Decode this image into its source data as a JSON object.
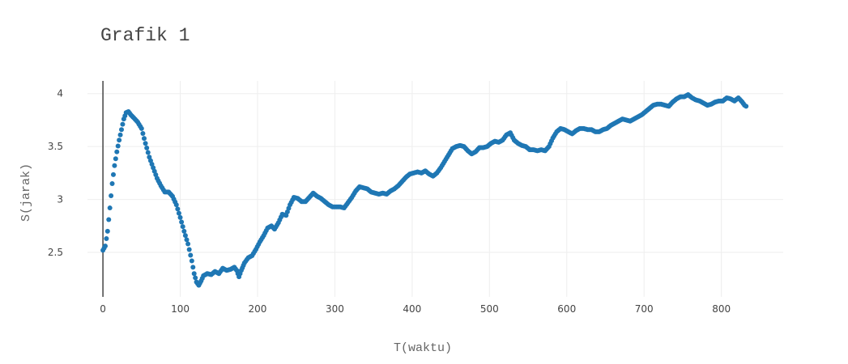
{
  "chart_data": {
    "type": "scatter",
    "title": "Grafik 1",
    "xlabel": "T(waktu)",
    "ylabel": "S(jarak)",
    "xlim": [
      -20,
      880
    ],
    "ylim": [
      2.08,
      4.12
    ],
    "x_ticks": [
      0,
      100,
      200,
      300,
      400,
      500,
      600,
      700,
      800
    ],
    "x_tick_labels": [
      "0",
      "100",
      "200",
      "300",
      "400",
      "500",
      "600",
      "700",
      "800"
    ],
    "y_ticks": [
      2.5,
      3,
      3.5,
      4
    ],
    "y_tick_labels": [
      "2.5",
      "3",
      "3.5",
      "4"
    ],
    "grid": true,
    "legend": "none",
    "color": "#1f77b4",
    "series": [
      {
        "name": "S(jarak)",
        "keypoints": [
          [
            0,
            2.52
          ],
          [
            3,
            2.56
          ],
          [
            6,
            2.7
          ],
          [
            9,
            2.92
          ],
          [
            12,
            3.15
          ],
          [
            15,
            3.32
          ],
          [
            18,
            3.45
          ],
          [
            21,
            3.56
          ],
          [
            24,
            3.66
          ],
          [
            27,
            3.76
          ],
          [
            30,
            3.82
          ],
          [
            33,
            3.83
          ],
          [
            36,
            3.8
          ],
          [
            40,
            3.77
          ],
          [
            45,
            3.73
          ],
          [
            50,
            3.67
          ],
          [
            55,
            3.53
          ],
          [
            60,
            3.4
          ],
          [
            65,
            3.3
          ],
          [
            70,
            3.2
          ],
          [
            75,
            3.13
          ],
          [
            80,
            3.07
          ],
          [
            85,
            3.07
          ],
          [
            90,
            3.03
          ],
          [
            95,
            2.95
          ],
          [
            100,
            2.83
          ],
          [
            105,
            2.7
          ],
          [
            110,
            2.58
          ],
          [
            115,
            2.42
          ],
          [
            118,
            2.3
          ],
          [
            121,
            2.22
          ],
          [
            124,
            2.19
          ],
          [
            127,
            2.23
          ],
          [
            130,
            2.28
          ],
          [
            135,
            2.3
          ],
          [
            140,
            2.29
          ],
          [
            145,
            2.32
          ],
          [
            150,
            2.3
          ],
          [
            155,
            2.35
          ],
          [
            160,
            2.33
          ],
          [
            165,
            2.34
          ],
          [
            170,
            2.36
          ],
          [
            173,
            2.33
          ],
          [
            176,
            2.27
          ],
          [
            179,
            2.33
          ],
          [
            183,
            2.4
          ],
          [
            188,
            2.45
          ],
          [
            193,
            2.47
          ],
          [
            198,
            2.53
          ],
          [
            203,
            2.6
          ],
          [
            208,
            2.66
          ],
          [
            213,
            2.73
          ],
          [
            218,
            2.75
          ],
          [
            222,
            2.72
          ],
          [
            227,
            2.78
          ],
          [
            232,
            2.86
          ],
          [
            237,
            2.85
          ],
          [
            242,
            2.95
          ],
          [
            247,
            3.02
          ],
          [
            252,
            3.01
          ],
          [
            257,
            2.98
          ],
          [
            262,
            2.98
          ],
          [
            267,
            3.02
          ],
          [
            272,
            3.06
          ],
          [
            277,
            3.03
          ],
          [
            282,
            3.01
          ],
          [
            287,
            2.98
          ],
          [
            292,
            2.95
          ],
          [
            297,
            2.93
          ],
          [
            302,
            2.93
          ],
          [
            307,
            2.93
          ],
          [
            312,
            2.92
          ],
          [
            317,
            2.97
          ],
          [
            322,
            3.02
          ],
          [
            327,
            3.08
          ],
          [
            332,
            3.12
          ],
          [
            337,
            3.11
          ],
          [
            342,
            3.1
          ],
          [
            347,
            3.07
          ],
          [
            352,
            3.06
          ],
          [
            357,
            3.05
          ],
          [
            362,
            3.06
          ],
          [
            367,
            3.05
          ],
          [
            372,
            3.08
          ],
          [
            377,
            3.1
          ],
          [
            382,
            3.13
          ],
          [
            387,
            3.17
          ],
          [
            392,
            3.21
          ],
          [
            397,
            3.24
          ],
          [
            402,
            3.25
          ],
          [
            407,
            3.26
          ],
          [
            412,
            3.25
          ],
          [
            417,
            3.27
          ],
          [
            422,
            3.24
          ],
          [
            427,
            3.22
          ],
          [
            432,
            3.25
          ],
          [
            437,
            3.3
          ],
          [
            442,
            3.36
          ],
          [
            447,
            3.42
          ],
          [
            452,
            3.48
          ],
          [
            457,
            3.5
          ],
          [
            462,
            3.51
          ],
          [
            467,
            3.5
          ],
          [
            472,
            3.46
          ],
          [
            477,
            3.43
          ],
          [
            482,
            3.45
          ],
          [
            487,
            3.49
          ],
          [
            492,
            3.49
          ],
          [
            497,
            3.5
          ],
          [
            502,
            3.53
          ],
          [
            507,
            3.55
          ],
          [
            512,
            3.54
          ],
          [
            517,
            3.56
          ],
          [
            522,
            3.61
          ],
          [
            527,
            3.63
          ],
          [
            532,
            3.56
          ],
          [
            537,
            3.53
          ],
          [
            542,
            3.51
          ],
          [
            547,
            3.5
          ],
          [
            552,
            3.47
          ],
          [
            557,
            3.47
          ],
          [
            562,
            3.46
          ],
          [
            567,
            3.47
          ],
          [
            572,
            3.46
          ],
          [
            577,
            3.5
          ],
          [
            582,
            3.58
          ],
          [
            587,
            3.64
          ],
          [
            592,
            3.67
          ],
          [
            597,
            3.66
          ],
          [
            602,
            3.64
          ],
          [
            607,
            3.62
          ],
          [
            612,
            3.65
          ],
          [
            617,
            3.67
          ],
          [
            622,
            3.67
          ],
          [
            627,
            3.66
          ],
          [
            632,
            3.66
          ],
          [
            637,
            3.64
          ],
          [
            642,
            3.64
          ],
          [
            647,
            3.66
          ],
          [
            652,
            3.67
          ],
          [
            657,
            3.7
          ],
          [
            662,
            3.72
          ],
          [
            667,
            3.74
          ],
          [
            672,
            3.76
          ],
          [
            677,
            3.75
          ],
          [
            682,
            3.74
          ],
          [
            687,
            3.76
          ],
          [
            692,
            3.78
          ],
          [
            697,
            3.8
          ],
          [
            702,
            3.83
          ],
          [
            707,
            3.86
          ],
          [
            712,
            3.89
          ],
          [
            717,
            3.9
          ],
          [
            722,
            3.9
          ],
          [
            727,
            3.89
          ],
          [
            732,
            3.88
          ],
          [
            737,
            3.92
          ],
          [
            742,
            3.95
          ],
          [
            747,
            3.97
          ],
          [
            752,
            3.97
          ],
          [
            757,
            3.99
          ],
          [
            762,
            3.96
          ],
          [
            767,
            3.94
          ],
          [
            772,
            3.93
          ],
          [
            777,
            3.91
          ],
          [
            782,
            3.89
          ],
          [
            787,
            3.9
          ],
          [
            792,
            3.92
          ],
          [
            797,
            3.93
          ],
          [
            802,
            3.93
          ],
          [
            807,
            3.96
          ],
          [
            812,
            3.95
          ],
          [
            817,
            3.93
          ],
          [
            822,
            3.96
          ],
          [
            827,
            3.92
          ],
          [
            830,
            3.89
          ],
          [
            832,
            3.88
          ]
        ]
      }
    ]
  }
}
